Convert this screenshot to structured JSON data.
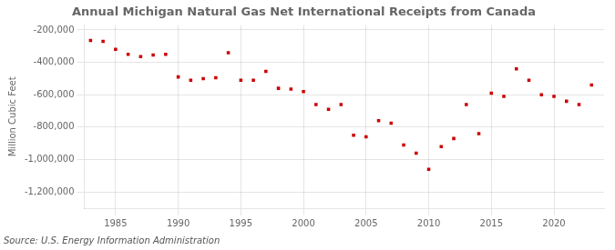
{
  "chart_data": {
    "type": "scatter",
    "title": "Annual Michigan Natural Gas Net International Receipts from Canada",
    "ylabel": "Million Cubic Feet",
    "source": "Source: U.S. Energy Information Administration",
    "x": [
      1983,
      1984,
      1985,
      1986,
      1987,
      1988,
      1989,
      1990,
      1991,
      1992,
      1993,
      1994,
      1995,
      1996,
      1997,
      1998,
      1999,
      2000,
      2001,
      2002,
      2003,
      2004,
      2005,
      2006,
      2007,
      2008,
      2009,
      2010,
      2011,
      2012,
      2013,
      2014,
      2015,
      2016,
      2017,
      2018,
      2019,
      2020,
      2021,
      2022,
      2023
    ],
    "values": [
      -265000,
      -270000,
      -320000,
      -350000,
      -365000,
      -355000,
      -350000,
      -490000,
      -510000,
      -500000,
      -495000,
      -340000,
      -510000,
      -510000,
      -455000,
      -560000,
      -565000,
      -580000,
      -660000,
      -690000,
      -660000,
      -850000,
      -860000,
      -760000,
      -775000,
      -910000,
      -960000,
      -1060000,
      -920000,
      -870000,
      -660000,
      -840000,
      -590000,
      -610000,
      -440000,
      -510000,
      -600000,
      -610000,
      -640000,
      -660000,
      -540000
    ],
    "color": "#cc0000",
    "marker": "square",
    "xlim": [
      1982.5,
      2024
    ],
    "xticks": [
      1985,
      1990,
      1995,
      2000,
      2005,
      2010,
      2015,
      2020
    ],
    "ylim": [
      -1300000,
      -170000
    ],
    "yticks": [
      {
        "value": -200000,
        "label": "-200,000"
      },
      {
        "value": -400000,
        "label": "-400,000"
      },
      {
        "value": -600000,
        "label": "-600,000"
      },
      {
        "value": -800000,
        "label": "-800,000"
      },
      {
        "value": -1000000,
        "label": "-1,000,000"
      },
      {
        "value": -1200000,
        "label": "-1,200,000"
      }
    ],
    "grid": true
  }
}
